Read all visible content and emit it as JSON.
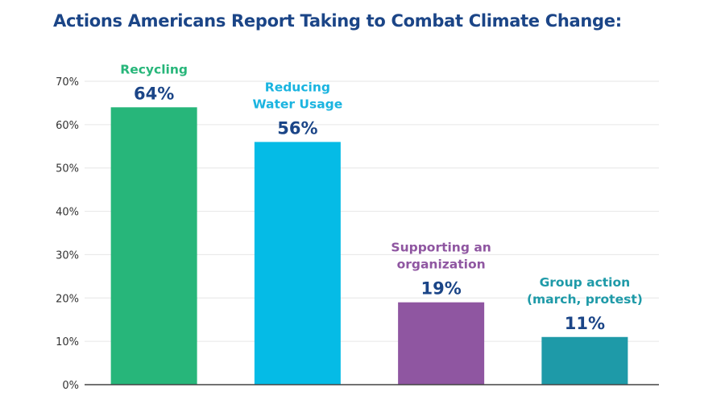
{
  "chart_data": {
    "type": "bar",
    "title": "Actions Americans Report Taking to Combat Climate Change:",
    "xlabel": "",
    "ylabel": "",
    "ylim": [
      0,
      70
    ],
    "yticks": [
      0,
      10,
      20,
      30,
      40,
      50,
      60,
      70
    ],
    "ytick_labels": [
      "0%",
      "10%",
      "20%",
      "30%",
      "40%",
      "50%",
      "60%",
      "70%"
    ],
    "grid": true,
    "legend": "none",
    "categories": [
      [
        "Recycling"
      ],
      [
        "Reducing",
        "Water Usage"
      ],
      [
        "Supporting an",
        "organization"
      ],
      [
        "Group action",
        "(march, protest)"
      ]
    ],
    "values": [
      64,
      56,
      19,
      11
    ],
    "value_labels": [
      "64%",
      "56%",
      "19%",
      "11%"
    ],
    "colors": [
      "#27b67a",
      "#05bbe6",
      "#8f56a1",
      "#1e9aa8"
    ],
    "label_colors": [
      "#27b67a",
      "#1ab4e0",
      "#8f56a1",
      "#1e9aa8"
    ],
    "value_label_color": "#1b4587"
  }
}
